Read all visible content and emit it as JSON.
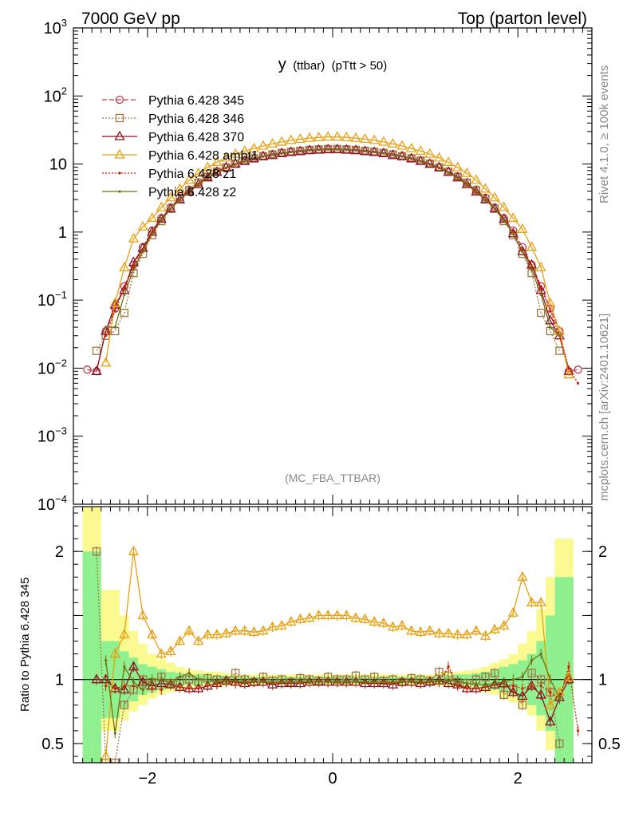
{
  "header": {
    "left": "7000 GeV pp",
    "right": "Top (parton level)"
  },
  "side_labels": {
    "rivet": "Rivet 4.1.0, ≥ 100k events",
    "mcplots": "mcplots.cern.ch [arXiv:2401.10621]"
  },
  "watermark": "(MC_FBA_TTBAR)",
  "colors": {
    "p345": "#c0394f",
    "p346": "#a07840",
    "p370": "#8b1420",
    "ambt1": "#e8a010",
    "z1": "#cc2200",
    "z2": "#707010",
    "band_green": "#8ff08f",
    "band_yellow": "#fafa90"
  },
  "chart_data": [
    {
      "type": "line",
      "title_main": "y",
      "title_sub": "(ttbar)",
      "title_cut": "(pTtt > 50)",
      "xlabel": "",
      "ylabel": "",
      "xlim": [
        -2.8,
        2.8
      ],
      "ylim": [
        0.0001,
        1000
      ],
      "yscale": "log",
      "legend_position": "top-left",
      "y_tick_labels": [
        "10^-4",
        "10^-3",
        "10^-2",
        "10^-1",
        "1",
        "10",
        "10^2",
        "10^3"
      ],
      "x": [
        -2.65,
        -2.55,
        -2.45,
        -2.35,
        -2.25,
        -2.15,
        -2.05,
        -1.95,
        -1.85,
        -1.75,
        -1.65,
        -1.55,
        -1.45,
        -1.35,
        -1.25,
        -1.15,
        -1.05,
        -0.95,
        -0.85,
        -0.75,
        -0.65,
        -0.55,
        -0.45,
        -0.35,
        -0.25,
        -0.15,
        -0.05,
        0.05,
        0.15,
        0.25,
        0.35,
        0.45,
        0.55,
        0.65,
        0.75,
        0.85,
        0.95,
        1.05,
        1.15,
        1.25,
        1.35,
        1.45,
        1.55,
        1.65,
        1.75,
        1.85,
        1.95,
        2.05,
        2.15,
        2.25,
        2.35,
        2.45,
        2.55,
        2.65
      ],
      "series": [
        {
          "name": "Pythia 6.428 345",
          "key": "p345",
          "marker": "circle-open",
          "dash": "6,3",
          "values": [
            0.0095,
            0.009,
            0.035,
            0.075,
            0.16,
            0.33,
            0.6,
            1.05,
            1.6,
            2.3,
            3.2,
            4.2,
            5.4,
            6.6,
            7.8,
            9.0,
            10.2,
            11.3,
            12.3,
            13.2,
            14.0,
            14.7,
            15.3,
            15.8,
            16.2,
            16.5,
            16.7,
            16.7,
            16.5,
            16.2,
            15.8,
            15.3,
            14.7,
            14.0,
            13.2,
            12.3,
            11.3,
            10.2,
            9.0,
            7.8,
            6.6,
            5.4,
            4.2,
            3.2,
            2.3,
            1.6,
            1.05,
            0.6,
            0.33,
            0.16,
            0.075,
            0.035,
            0.009,
            0.0095
          ]
        },
        {
          "name": "Pythia 6.428 346",
          "key": "p346",
          "marker": "square-open",
          "dash": "2,2",
          "values": [
            null,
            0.018,
            0.03,
            0.035,
            0.065,
            0.25,
            0.48,
            0.9,
            1.45,
            2.2,
            3.1,
            4.1,
            5.3,
            6.5,
            7.7,
            8.9,
            10.1,
            11.2,
            12.1,
            13.0,
            13.8,
            14.5,
            15.1,
            15.6,
            16.1,
            16.4,
            16.6,
            16.6,
            16.4,
            16.1,
            15.6,
            15.1,
            14.5,
            13.8,
            13.0,
            12.1,
            11.2,
            10.1,
            8.9,
            7.7,
            6.5,
            5.3,
            4.1,
            3.1,
            2.2,
            1.45,
            0.9,
            0.48,
            0.25,
            0.065,
            0.035,
            0.018,
            null,
            null
          ]
        },
        {
          "name": "Pythia 6.428 370",
          "key": "p370",
          "marker": "triangle-open",
          "dash": "",
          "values": [
            null,
            0.009,
            0.035,
            0.085,
            0.14,
            0.36,
            0.58,
            1.0,
            1.55,
            2.2,
            3.0,
            3.9,
            5.0,
            6.3,
            7.6,
            8.9,
            10.0,
            11.0,
            12.0,
            12.9,
            13.4,
            14.3,
            14.9,
            15.3,
            15.8,
            16.1,
            16.3,
            16.3,
            16.1,
            15.8,
            15.3,
            14.9,
            14.3,
            13.4,
            12.9,
            12.0,
            11.0,
            10.0,
            8.9,
            7.6,
            6.3,
            5.0,
            3.9,
            3.0,
            2.2,
            1.55,
            0.95,
            0.52,
            0.33,
            0.14,
            0.05,
            0.03,
            0.009,
            null
          ]
        },
        {
          "name": "Pythia 6.428 ambt1",
          "key": "ambt1",
          "marker": "triangle-open",
          "dash": "",
          "values": [
            null,
            null,
            0.012,
            0.09,
            0.3,
            0.8,
            1.2,
            1.6,
            2.3,
            3.2,
            4.3,
            5.8,
            7.3,
            8.9,
            10.6,
            12.3,
            14.0,
            15.5,
            16.9,
            18.4,
            19.8,
            21.1,
            22.3,
            23.2,
            24.0,
            24.6,
            25.0,
            25.0,
            24.6,
            24.0,
            23.2,
            22.3,
            21.1,
            19.8,
            18.4,
            16.9,
            15.5,
            14.0,
            12.3,
            10.6,
            8.9,
            7.3,
            5.8,
            4.3,
            3.2,
            2.3,
            1.6,
            1.1,
            0.6,
            0.3,
            0.09,
            0.035,
            0.008,
            null
          ]
        },
        {
          "name": "Pythia 6.428 z1",
          "key": "z1",
          "marker": "dot",
          "dash": "2,2",
          "values": [
            null,
            null,
            0.03,
            0.07,
            0.15,
            0.31,
            0.55,
            0.98,
            1.5,
            2.2,
            3.0,
            3.9,
            5.0,
            6.2,
            7.4,
            8.7,
            9.8,
            10.9,
            11.9,
            12.9,
            13.7,
            14.4,
            15.0,
            15.5,
            15.9,
            16.2,
            16.4,
            16.4,
            16.2,
            15.9,
            15.5,
            15.0,
            14.4,
            13.7,
            12.9,
            11.9,
            10.9,
            9.8,
            8.7,
            7.4,
            6.2,
            5.0,
            3.9,
            3.0,
            2.2,
            1.5,
            0.98,
            0.55,
            0.31,
            0.15,
            0.07,
            0.03,
            0.01,
            0.006
          ]
        },
        {
          "name": "Pythia 6.428 z2",
          "key": "z2",
          "marker": "dot",
          "dash": "",
          "values": [
            null,
            null,
            0.04,
            0.04,
            0.12,
            0.28,
            0.52,
            0.95,
            1.5,
            2.2,
            3.0,
            4.0,
            5.1,
            6.3,
            7.5,
            8.8,
            9.9,
            11.0,
            12.0,
            12.9,
            13.7,
            14.4,
            15.0,
            15.5,
            15.9,
            16.2,
            16.4,
            16.4,
            16.2,
            15.9,
            15.5,
            15.0,
            14.4,
            13.7,
            12.9,
            12.0,
            11.0,
            9.9,
            8.8,
            7.5,
            6.3,
            5.1,
            4.0,
            3.0,
            2.2,
            1.5,
            0.95,
            0.52,
            0.28,
            0.12,
            0.04,
            0.03,
            null,
            null
          ]
        }
      ]
    },
    {
      "type": "line",
      "title": "",
      "xlabel": "",
      "ylabel": "Ratio to Pythia 6.428 345",
      "xlim": [
        -2.8,
        2.8
      ],
      "ylim": [
        0.35,
        2.35
      ],
      "x_tick_labels": [
        "−2",
        "0",
        "2"
      ],
      "y_tick_labels": [
        "0.5",
        "1",
        "2"
      ],
      "bands": {
        "x": [
          -2.65,
          -2.55,
          -2.45,
          -2.35,
          -2.25,
          -2.15,
          -2.05,
          -1.95,
          -1.85,
          -1.75,
          -1.65,
          -1.55,
          -1.45,
          -1.35,
          -1.25,
          -1.15,
          1.15,
          1.25,
          1.35,
          1.45,
          1.55,
          1.65,
          1.75,
          1.85,
          1.95,
          2.05,
          2.15,
          2.25,
          2.35,
          2.45,
          2.55
        ],
        "green_lo": [
          0.35,
          0.35,
          0.7,
          0.7,
          0.78,
          0.83,
          0.88,
          0.9,
          0.92,
          0.94,
          0.95,
          0.96,
          0.96,
          0.97,
          0.97,
          0.97,
          0.97,
          0.97,
          0.96,
          0.96,
          0.95,
          0.94,
          0.92,
          0.9,
          0.88,
          0.85,
          0.8,
          0.72,
          0.6,
          0.35,
          0.35
        ],
        "green_hi": [
          2.0,
          2.0,
          1.3,
          1.3,
          1.22,
          1.17,
          1.12,
          1.1,
          1.08,
          1.06,
          1.05,
          1.04,
          1.04,
          1.03,
          1.03,
          1.03,
          1.03,
          1.03,
          1.04,
          1.04,
          1.05,
          1.06,
          1.08,
          1.1,
          1.12,
          1.15,
          1.2,
          1.3,
          1.5,
          1.8,
          1.8
        ],
        "yellow_lo": [
          0.35,
          0.35,
          0.6,
          0.6,
          0.68,
          0.75,
          0.8,
          0.85,
          0.88,
          0.9,
          0.92,
          0.93,
          0.94,
          0.95,
          0.95,
          0.95,
          0.95,
          0.95,
          0.94,
          0.93,
          0.92,
          0.9,
          0.88,
          0.85,
          0.82,
          0.78,
          0.72,
          0.6,
          0.45,
          0.35,
          0.35
        ],
        "yellow_hi": [
          2.35,
          2.35,
          1.7,
          1.7,
          1.5,
          1.38,
          1.28,
          1.2,
          1.16,
          1.13,
          1.1,
          1.08,
          1.07,
          1.06,
          1.06,
          1.05,
          1.05,
          1.06,
          1.06,
          1.07,
          1.08,
          1.1,
          1.13,
          1.16,
          1.2,
          1.28,
          1.38,
          1.55,
          1.8,
          2.1,
          2.1
        ]
      },
      "series": [
        {
          "name": "Pythia 6.428 346",
          "key": "p346",
          "marker": "square-open",
          "dash": "2,2",
          "values": [
            null,
            2.0,
            0.35,
            0.35,
            0.8,
            0.92,
            1.0,
            0.98,
            1.02,
            0.97,
            0.99,
            1.0,
            0.98,
            1.01,
            1.0,
            0.99,
            1.05,
            1.0,
            0.98,
            1.02,
            0.99,
            1.0,
            0.98,
            1.01,
            1.0,
            0.99,
            1.02,
            1.0,
            1.0,
            1.03,
            1.0,
            1.02,
            0.99,
            1.0,
            0.98,
            1.01,
            1.0,
            0.99,
            1.06,
            1.03,
            0.98,
            0.97,
            1.0,
            1.02,
            1.05,
            0.88,
            0.93,
            0.8,
            1.05,
            1.0,
            0.9,
            0.5,
            null,
            null
          ]
        },
        {
          "name": "Pythia 6.428 370",
          "key": "p370",
          "marker": "triangle-open",
          "dash": "",
          "values": [
            null,
            1.0,
            1.0,
            0.93,
            0.92,
            1.1,
            0.98,
            0.95,
            0.97,
            0.96,
            0.94,
            0.93,
            0.93,
            0.95,
            0.97,
            0.99,
            0.98,
            0.97,
            0.98,
            0.98,
            0.96,
            0.97,
            0.97,
            0.97,
            0.98,
            0.98,
            0.98,
            0.98,
            0.98,
            0.98,
            0.97,
            0.97,
            0.97,
            0.96,
            0.98,
            0.98,
            0.97,
            0.98,
            0.99,
            0.97,
            0.96,
            0.93,
            0.93,
            0.94,
            0.96,
            0.97,
            0.9,
            0.87,
            0.95,
            0.88,
            0.67,
            0.86,
            1.0,
            null
          ]
        },
        {
          "name": "Pythia 6.428 ambt1",
          "key": "ambt1",
          "marker": "triangle-open",
          "dash": "",
          "values": [
            null,
            null,
            0.4,
            1.2,
            1.35,
            2.0,
            1.5,
            1.35,
            1.2,
            1.22,
            1.3,
            1.38,
            1.3,
            1.35,
            1.35,
            1.36,
            1.38,
            1.38,
            1.37,
            1.38,
            1.41,
            1.42,
            1.45,
            1.47,
            1.48,
            1.5,
            1.5,
            1.5,
            1.5,
            1.48,
            1.47,
            1.45,
            1.44,
            1.41,
            1.42,
            1.38,
            1.37,
            1.38,
            1.36,
            1.36,
            1.35,
            1.35,
            1.38,
            1.34,
            1.39,
            1.42,
            1.52,
            1.8,
            1.6,
            1.6,
            0.8,
            0.9,
            1.02,
            null
          ]
        },
        {
          "name": "Pythia 6.428 z1",
          "key": "z1",
          "marker": "dot",
          "dash": "2,2",
          "values": [
            null,
            null,
            0.95,
            0.93,
            0.95,
            0.95,
            0.92,
            0.93,
            0.92,
            0.97,
            0.94,
            0.93,
            0.93,
            0.95,
            0.96,
            0.98,
            0.97,
            0.97,
            0.98,
            0.98,
            0.97,
            0.98,
            0.98,
            0.98,
            0.98,
            0.98,
            0.98,
            0.98,
            0.98,
            0.98,
            0.98,
            0.98,
            0.98,
            0.97,
            0.98,
            0.98,
            0.97,
            0.98,
            0.98,
            1.1,
            0.95,
            0.93,
            0.93,
            0.94,
            0.96,
            0.94,
            0.95,
            0.93,
            0.95,
            0.95,
            0.9,
            0.85,
            1.1,
            0.6
          ]
        },
        {
          "name": "Pythia 6.428 z2",
          "key": "z2",
          "marker": "dot",
          "dash": "",
          "values": [
            null,
            null,
            1.15,
            0.58,
            1.1,
            0.98,
            0.92,
            1.0,
            1.0,
            0.97,
            1.02,
            1.05,
            1.0,
            1.0,
            0.98,
            0.99,
            0.99,
            0.98,
            0.98,
            0.98,
            0.98,
            0.98,
            0.98,
            0.98,
            0.98,
            0.98,
            0.98,
            0.98,
            0.98,
            0.98,
            0.98,
            0.98,
            0.98,
            0.98,
            0.98,
            0.98,
            0.98,
            0.98,
            0.99,
            0.99,
            0.99,
            0.97,
            0.96,
            0.96,
            0.97,
            0.98,
            1.0,
            1.02,
            1.15,
            1.2,
            1.0,
            0.86,
            null,
            null
          ]
        }
      ]
    }
  ]
}
